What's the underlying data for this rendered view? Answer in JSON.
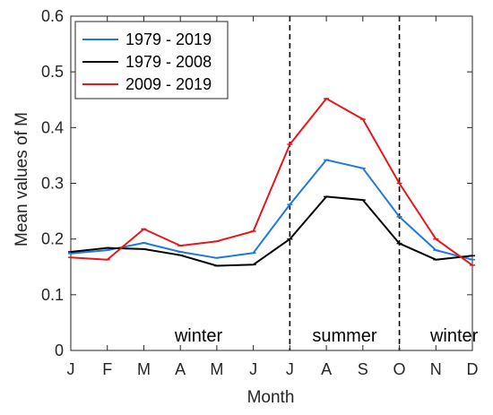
{
  "chart_data": {
    "type": "line",
    "xlabel": "Month",
    "ylabel": "Mean values of M",
    "ylim": [
      0,
      0.6
    ],
    "yticks": [
      "0",
      "0.1",
      "0.2",
      "0.3",
      "0.4",
      "0.5",
      "0.6"
    ],
    "categories": [
      "J",
      "F",
      "M",
      "A",
      "M",
      "J",
      "J",
      "A",
      "S",
      "O",
      "N",
      "D"
    ],
    "grid": false,
    "legend_position": "top-left",
    "series": [
      {
        "name": "1979 - 2019",
        "color": "#1f77e0",
        "values": [
          0.174,
          0.18,
          0.193,
          0.177,
          0.166,
          0.175,
          0.262,
          0.342,
          0.327,
          0.24,
          0.18,
          0.163
        ]
      },
      {
        "name": "1979 - 2008",
        "color": "#000000",
        "values": [
          0.177,
          0.184,
          0.182,
          0.171,
          0.152,
          0.154,
          0.2,
          0.276,
          0.27,
          0.192,
          0.163,
          0.17
        ]
      },
      {
        "name": "2009 - 2019",
        "color": "#e8161b",
        "values": [
          0.167,
          0.163,
          0.218,
          0.188,
          0.196,
          0.214,
          0.37,
          0.452,
          0.415,
          0.3,
          0.2,
          0.153
        ]
      }
    ],
    "dividers": [
      6,
      9
    ],
    "season_labels": [
      {
        "text": "winter",
        "at": 3.5
      },
      {
        "text": "summer",
        "at": 7.5
      },
      {
        "text": "winter",
        "at": 10.5
      }
    ]
  }
}
